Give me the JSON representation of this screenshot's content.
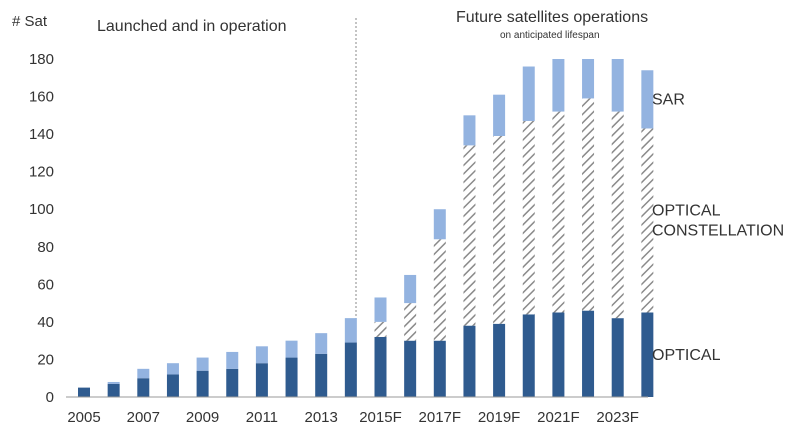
{
  "chart_data": {
    "type": "bar",
    "stacked": true,
    "ylabel": "# Sat",
    "ylim": [
      0,
      180
    ],
    "ytick_step": 20,
    "grid": false,
    "categories": [
      "2005",
      "2006",
      "2007",
      "2008",
      "2009",
      "2010",
      "2011",
      "2012",
      "2013",
      "2014",
      "2015F",
      "2016F",
      "2017F",
      "2018F",
      "2019F",
      "2020F",
      "2021F",
      "2022F",
      "2023F",
      "2024F"
    ],
    "x_tick_labels": [
      "2005",
      "2007",
      "2009",
      "2011",
      "2013",
      "2015F",
      "2017F",
      "2019F",
      "2021F",
      "2023F"
    ],
    "series": [
      {
        "name": "OPTICAL",
        "color": "#2f5b8f",
        "pattern": "solid",
        "values": [
          5,
          7,
          10,
          12,
          14,
          15,
          18,
          21,
          23,
          29,
          32,
          30,
          30,
          38,
          39,
          44,
          45,
          46,
          42,
          45
        ]
      },
      {
        "name": "OPTICAL CONSTELLATION",
        "color": "#8a8a8a",
        "pattern": "hatched",
        "values": [
          0,
          0,
          0,
          0,
          0,
          0,
          0,
          0,
          0,
          0,
          8,
          20,
          54,
          96,
          100,
          103,
          107,
          113,
          110,
          98
        ]
      },
      {
        "name": "SAR",
        "color": "#93b3e0",
        "pattern": "solid",
        "values": [
          0,
          1,
          5,
          6,
          7,
          9,
          9,
          9,
          11,
          13,
          13,
          15,
          16,
          16,
          22,
          29,
          28,
          21,
          28,
          31
        ]
      }
    ],
    "sections": {
      "historical_title": "Launched and in operation",
      "future_title": "Future satellites operations",
      "future_subtitle": "on anticipated lifespan"
    }
  }
}
